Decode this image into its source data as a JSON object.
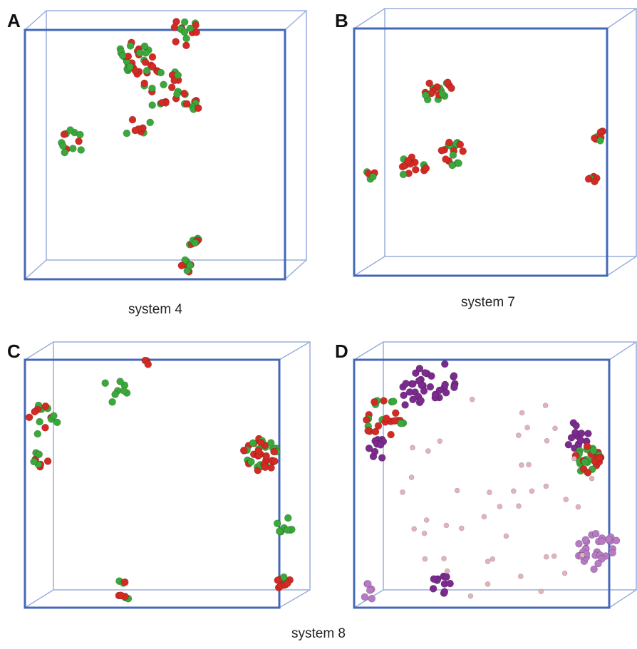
{
  "panels": [
    {
      "letter": "A",
      "caption": "system 4"
    },
    {
      "letter": "B",
      "caption": "system 7"
    },
    {
      "letter": "C"
    },
    {
      "letter": "D"
    }
  ],
  "caption": "system 8"
}
